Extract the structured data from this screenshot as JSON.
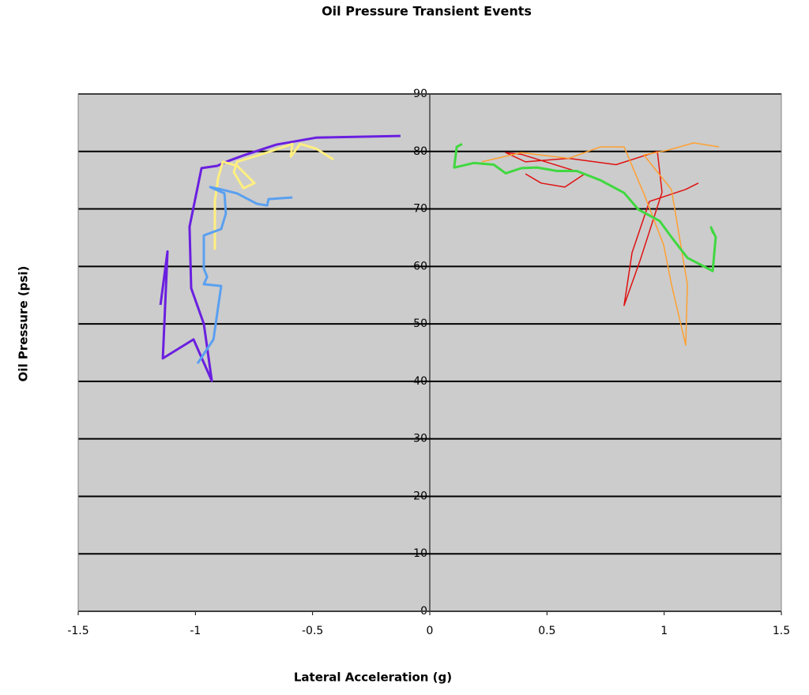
{
  "chart_data": {
    "type": "line",
    "title": "Oil Pressure Transient Events",
    "x_label": "Lateral Acceleration (g)",
    "y_label": "Oil Pressure (psi)",
    "xlim": [
      -1.5,
      1.5
    ],
    "xticks": [
      -1.5,
      -1,
      -0.5,
      0,
      0.5,
      1,
      1.5
    ],
    "ylim": [
      0,
      90
    ],
    "yticks": [
      0,
      10,
      20,
      30,
      40,
      50,
      60,
      70,
      80,
      90
    ],
    "grid": true,
    "background": "#cccccc",
    "series": [
      {
        "color": "#6a1fe0",
        "line_width": 3,
        "x": [
          -1.149,
          -1.119,
          -1.139,
          -1.008,
          -0.93,
          -0.964,
          -1.018,
          -1.025,
          -0.974,
          -0.907,
          -0.856,
          -0.789,
          -0.654,
          -0.485,
          -0.125
        ],
        "values": [
          53.3,
          62.6,
          44.0,
          47.3,
          40.1,
          50.0,
          56.2,
          66.9,
          77.1,
          77.5,
          78.4,
          79.4,
          81.2,
          82.4,
          82.7
        ]
      },
      {
        "color": "#ffef80",
        "line_width": 3,
        "x": [
          -0.917,
          -0.917,
          -0.903,
          -0.883,
          -0.822,
          -0.748,
          -0.795,
          -0.836,
          -0.822,
          -0.688,
          -0.586,
          -0.593,
          -0.553,
          -0.485,
          -0.411
        ],
        "values": [
          62.9,
          71.3,
          75.4,
          78.2,
          77.5,
          74.5,
          73.6,
          76.4,
          78.2,
          79.9,
          81.3,
          79.1,
          81.3,
          80.5,
          78.6
        ]
      },
      {
        "color": "#5aa0f0",
        "line_width": 3,
        "x": [
          -0.586,
          -0.688,
          -0.694,
          -0.738,
          -0.822,
          -0.89,
          -0.937,
          -0.876,
          -0.87,
          -0.89,
          -0.964,
          -0.964,
          -0.95,
          -0.964,
          -0.89,
          -0.923,
          -0.991
        ],
        "values": [
          72.0,
          71.7,
          70.6,
          70.9,
          72.7,
          73.4,
          73.8,
          72.7,
          69.2,
          66.5,
          65.4,
          59.6,
          58.2,
          56.9,
          56.6,
          47.3,
          43.1
        ]
      },
      {
        "color": "#e01010",
        "line_width": 1.5,
        "x": [
          1.146,
          1.092,
          0.937,
          0.863,
          0.829,
          0.897,
          0.991,
          0.971,
          0.795,
          0.593,
          0.408,
          0.324,
          0.391,
          0.661,
          0.576,
          0.475,
          0.408
        ],
        "values": [
          74.5,
          73.4,
          71.3,
          62.4,
          53.2,
          61.0,
          72.9,
          80.0,
          77.7,
          78.8,
          78.2,
          79.8,
          79.5,
          76.1,
          73.8,
          74.5,
          76.1
        ]
      },
      {
        "color": "#ffa030",
        "line_width": 1.5,
        "x": [
          0.222,
          0.391,
          0.593,
          0.728,
          0.829,
          0.913,
          0.998,
          1.031,
          1.092,
          1.099,
          1.031,
          0.913,
          1.014,
          1.126,
          1.234
        ],
        "values": [
          78.2,
          79.8,
          78.8,
          80.8,
          80.8,
          72.7,
          63.7,
          56.9,
          46.3,
          56.9,
          73.4,
          79.4,
          80.2,
          81.5,
          80.8
        ]
      },
      {
        "color": "#40d840",
        "line_width": 3,
        "x": [
          0.138,
          0.115,
          0.104,
          0.189,
          0.273,
          0.324,
          0.391,
          0.458,
          0.543,
          0.627,
          0.728,
          0.829,
          0.89,
          0.981,
          1.031,
          1.099,
          1.207,
          1.22,
          1.2,
          1.21
        ],
        "values": [
          81.3,
          80.8,
          77.2,
          78.0,
          77.7,
          76.2,
          77.1,
          77.2,
          76.6,
          76.6,
          75.0,
          72.8,
          69.9,
          67.9,
          65.1,
          61.5,
          59.2,
          65.1,
          66.8,
          65.7
        ]
      }
    ]
  }
}
